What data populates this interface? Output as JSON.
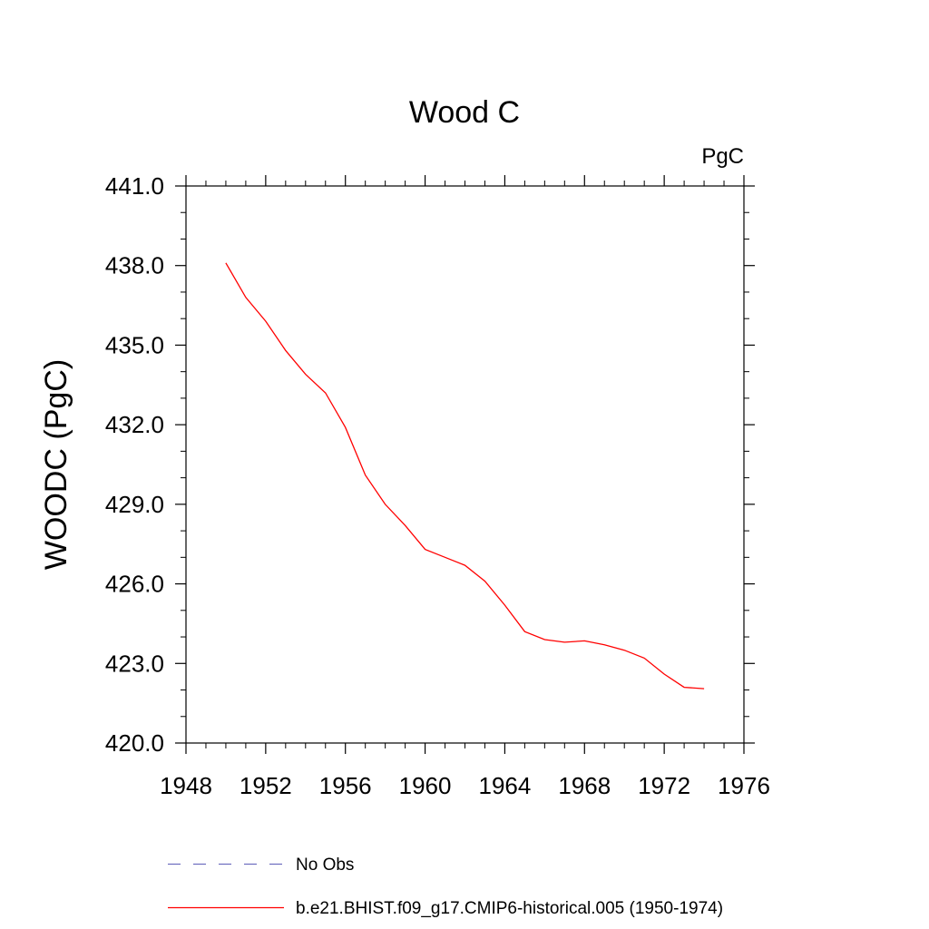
{
  "chart_data": {
    "type": "line",
    "title": "Wood C",
    "units_label": "PgC",
    "xlabel": "",
    "ylabel": "WOODC  (PgC)",
    "xlim": [
      1948,
      1976
    ],
    "ylim": [
      420.0,
      441.0
    ],
    "x_ticks": [
      1948,
      1952,
      1956,
      1960,
      1964,
      1968,
      1972,
      1976
    ],
    "y_ticks": [
      "420.0",
      "423.0",
      "426.0",
      "429.0",
      "432.0",
      "435.0",
      "438.0",
      "441.0"
    ],
    "grid": false,
    "legend_position": "bottom",
    "series": [
      {
        "name": "No Obs",
        "color": "#6f6fc0",
        "style": "dashed",
        "x": [],
        "y": []
      },
      {
        "name": "b.e21.BHIST.f09_g17.CMIP6-historical.005 (1950-1974)",
        "color": "#ff0000",
        "style": "solid",
        "x": [
          1950,
          1951,
          1952,
          1953,
          1954,
          1955,
          1956,
          1957,
          1958,
          1959,
          1960,
          1961,
          1962,
          1963,
          1964,
          1965,
          1966,
          1967,
          1968,
          1969,
          1970,
          1971,
          1972,
          1973,
          1974
        ],
        "y": [
          438.1,
          436.8,
          435.9,
          434.8,
          433.9,
          433.2,
          431.9,
          430.1,
          429.0,
          428.2,
          427.3,
          427.0,
          426.7,
          426.1,
          425.2,
          424.2,
          423.9,
          423.8,
          423.85,
          423.7,
          423.5,
          423.2,
          422.6,
          422.1,
          422.05
        ]
      }
    ]
  }
}
